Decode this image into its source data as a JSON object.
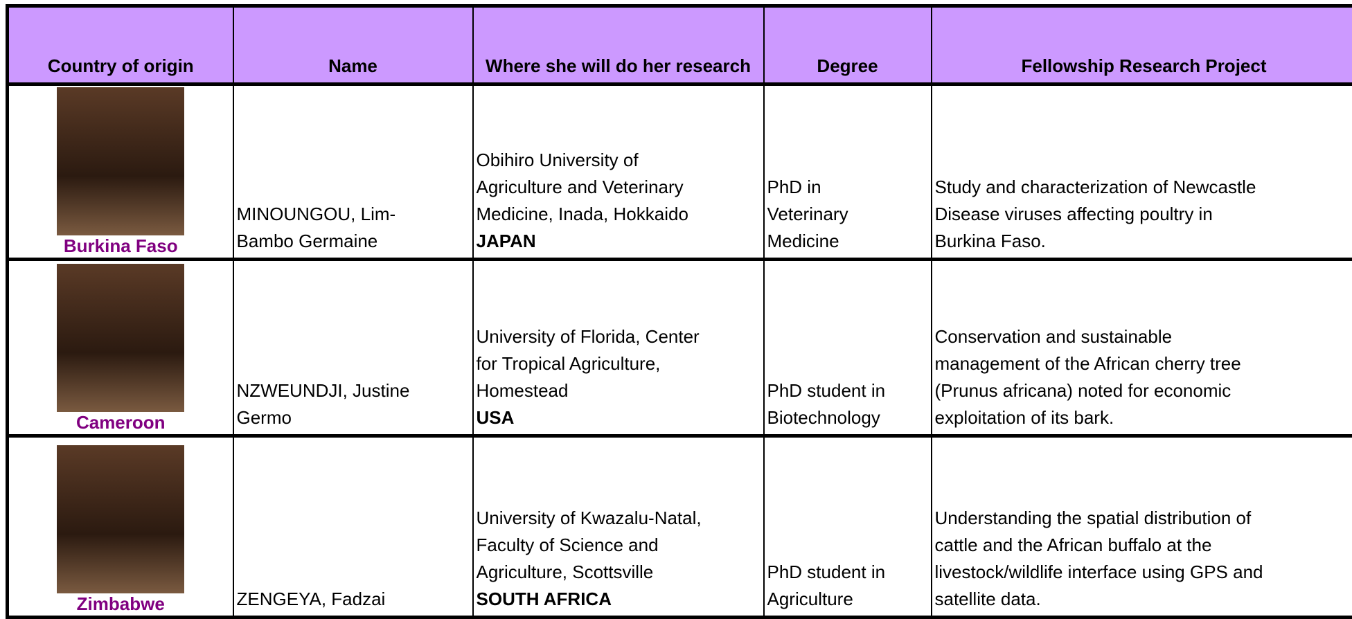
{
  "header": {
    "columns": [
      "Country of origin",
      "Name",
      "Where she will do her research",
      "Degree",
      "Fellowship Research Project"
    ]
  },
  "rows": [
    {
      "country": "Burkina Faso",
      "name": [
        "MINOUNGOU, Lim-",
        "Bambo Germaine"
      ],
      "institution": [
        "Obihiro University of",
        "Agriculture and Veterinary",
        "Medicine, Inada, Hokkaido"
      ],
      "host_country": "JAPAN",
      "degree": [
        "PhD in",
        "Veterinary",
        "Medicine"
      ],
      "project": [
        "Study and characterization of Newcastle",
        "Disease viruses affecting poultry in",
        "Burkina Faso."
      ]
    },
    {
      "country": "Cameroon",
      "name": [
        "NZWEUNDJI, Justine",
        "Germo"
      ],
      "institution": [
        "University of Florida, Center",
        "for Tropical Agriculture,",
        "Homestead"
      ],
      "host_country": "USA",
      "degree": [
        "PhD student in",
        "Biotechnology"
      ],
      "project": [
        "Conservation and sustainable",
        "management of the African cherry tree",
        "(Prunus africana) noted for economic",
        "exploitation of its bark."
      ]
    },
    {
      "country": "Zimbabwe",
      "name": [
        "ZENGEYA, Fadzai"
      ],
      "institution": [
        "University of Kwazalu-Natal,",
        "Faculty of Science and",
        "Agriculture, Scottsville"
      ],
      "host_country": "SOUTH AFRICA",
      "degree": [
        "PhD student in",
        "Agriculture"
      ],
      "project": [
        "Understanding the spatial distribution of",
        "cattle and the African buffalo at the",
        "livestock/wildlife interface using GPS and",
        "satellite data."
      ]
    }
  ]
}
